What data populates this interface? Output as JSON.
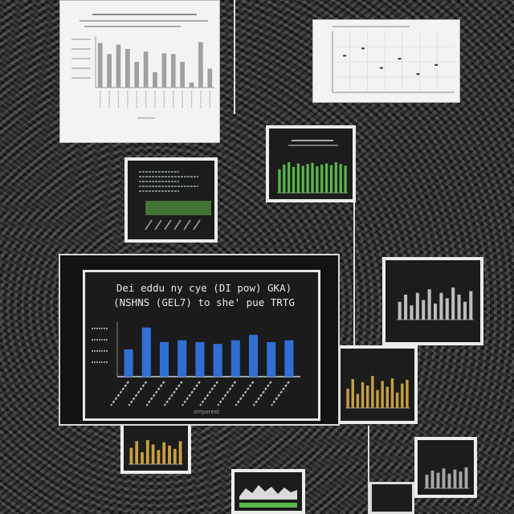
{
  "chart_data": [
    {
      "type": "bar",
      "title": "Dei eddu ny cye (DI pow) GKA)",
      "subtitle": "(NSHNS (GEL7) to she' pue TRTG",
      "xlabel": "orrporest",
      "ylabel": "",
      "categories": [
        "c1",
        "c2",
        "c3",
        "c4",
        "c5",
        "c6",
        "c7",
        "c8",
        "c9",
        "c10"
      ],
      "values": [
        15,
        27,
        19,
        20,
        19,
        18,
        20,
        23,
        19,
        20
      ],
      "ylim": [
        0,
        30
      ],
      "grid": false,
      "bar_color": "#2f6fd6"
    },
    {
      "type": "bar",
      "title": "",
      "categories": [
        "a1",
        "a2",
        "a3",
        "a4",
        "a5",
        "a6",
        "a7",
        "a8",
        "a9",
        "a10",
        "a11",
        "a12",
        "a13"
      ],
      "values": [
        52,
        39,
        50,
        45,
        30,
        42,
        18,
        40,
        39,
        30,
        6,
        53,
        22
      ],
      "ylim": [
        0,
        60
      ],
      "bar_color": "#a0a0a0"
    },
    {
      "type": "scatter",
      "title": "",
      "x": [
        10,
        25,
        40,
        55,
        70,
        85
      ],
      "y": [
        60,
        72,
        40,
        55,
        30,
        45
      ],
      "bar_color": "#333333"
    }
  ],
  "colors": {
    "wall": "#2b2b2b",
    "paper": "#f3f3f3",
    "frame": "#ececec",
    "board": "#1b1b1b",
    "accent_blue": "#2f6fd6",
    "accent_green": "#58b84a",
    "accent_gold": "#c9a13a"
  }
}
